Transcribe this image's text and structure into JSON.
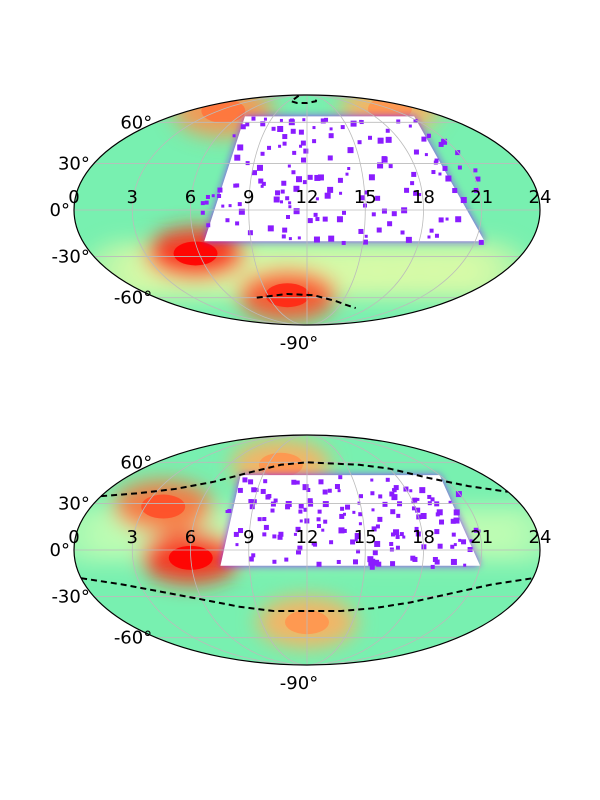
{
  "chart_data": [
    {
      "type": "heatmap",
      "projection": "mollweide",
      "title": "",
      "xlabel": "",
      "ylabel": "",
      "x_ticks": [
        "0",
        "3",
        "6",
        "9",
        "12",
        "15",
        "18",
        "21",
        "24"
      ],
      "y_ticks": [
        "60°",
        "30°",
        "0°",
        "-30°",
        "-60°",
        "-90°"
      ],
      "xlim": [
        0,
        24
      ],
      "ylim": [
        -90,
        90
      ],
      "grid": true,
      "colormap": "rainbow",
      "empty_region": {
        "ra_range": [
          6.5,
          21.5
        ],
        "dec_range": [
          -20,
          65
        ]
      },
      "hotspots": [
        {
          "ra": 5.8,
          "dec": -28,
          "level": 1.0
        },
        {
          "ra": 10.5,
          "dec": -58,
          "level": 0.95
        },
        {
          "ra": 3.5,
          "dec": 70,
          "level": 0.85
        },
        {
          "ra": 21,
          "dec": 72,
          "level": 0.8
        }
      ],
      "dashed_boundary": [
        {
          "name": "",
          "points": [
            [
              8.2,
              88
            ],
            [
              9.5,
              80
            ],
            [
              10.6,
              78
            ],
            [
              12,
              78
            ],
            [
              13.4,
              80
            ],
            [
              14.8,
              86
            ]
          ]
        },
        {
          "name": "",
          "points": [
            [
              8,
              -60
            ],
            [
              10.5,
              -57
            ],
            [
              12.5,
              -58
            ],
            [
              14.5,
              -63
            ],
            [
              15.5,
              -66
            ],
            [
              16.8,
              -69
            ]
          ]
        }
      ]
    },
    {
      "type": "heatmap",
      "projection": "mollweide",
      "title": "",
      "xlabel": "",
      "ylabel": "",
      "x_ticks": [
        "0",
        "3",
        "6",
        "9",
        "12",
        "15",
        "18",
        "21",
        "24"
      ],
      "y_ticks": [
        "60°",
        "30°",
        "0°",
        "-30°",
        "-60°",
        "-90°"
      ],
      "xlim": [
        0,
        24
      ],
      "ylim": [
        -90,
        90
      ],
      "grid": true,
      "colormap": "rainbow",
      "empty_region": {
        "ra_range": [
          7.5,
          21
        ],
        "dec_range": [
          -10,
          50
        ]
      },
      "hotspots": [
        {
          "ra": 6,
          "dec": -5,
          "level": 1.0
        },
        {
          "ra": 4,
          "dec": 28,
          "level": 0.9
        },
        {
          "ra": 12,
          "dec": -48,
          "level": 0.8
        },
        {
          "ra": 10,
          "dec": 58,
          "level": 0.8
        }
      ],
      "dashed_boundary": [
        {
          "name": "",
          "points": [
            [
              0,
              35
            ],
            [
              2,
              37
            ],
            [
              4,
              40
            ],
            [
              6,
              45
            ],
            [
              8,
              52
            ],
            [
              10,
              58
            ],
            [
              12,
              60
            ],
            [
              14,
              59
            ],
            [
              16,
              58
            ],
            [
              18,
              55
            ],
            [
              20,
              48
            ],
            [
              22,
              42
            ],
            [
              24,
              38
            ]
          ]
        },
        {
          "name": "",
          "points": [
            [
              0,
              -18
            ],
            [
              2,
              -22
            ],
            [
              4,
              -27
            ],
            [
              6,
              -32
            ],
            [
              8,
              -37
            ],
            [
              10,
              -40
            ],
            [
              12,
              -40
            ],
            [
              14,
              -40
            ],
            [
              16,
              -38
            ],
            [
              18,
              -34
            ],
            [
              20,
              -28
            ],
            [
              22,
              -22
            ],
            [
              24,
              -18
            ]
          ]
        }
      ]
    }
  ]
}
